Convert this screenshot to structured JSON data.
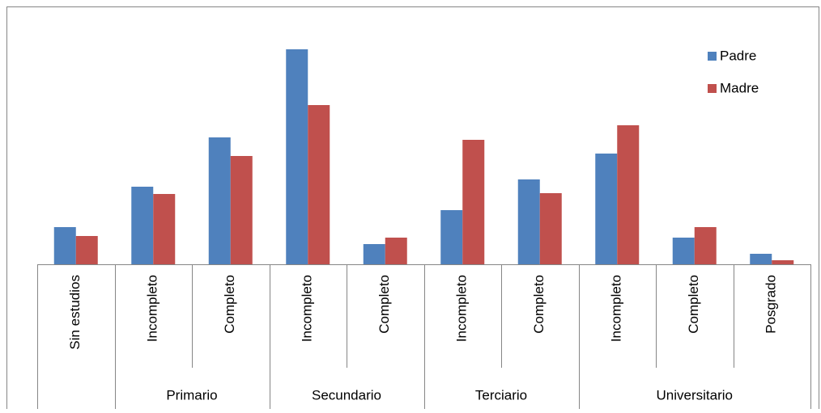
{
  "chart_data": {
    "type": "bar",
    "groups": [
      {
        "categories": [
          "Sin estudios"
        ]
      },
      {
        "name": "Primario",
        "categories": [
          "Incompleto",
          "Completo"
        ]
      },
      {
        "name": "Secundario",
        "categories": [
          "Incompleto",
          "Completo"
        ]
      },
      {
        "name": "Terciario",
        "categories": [
          "Incompleto",
          "Completo"
        ]
      },
      {
        "name": "Universitario",
        "categories": [
          "Incompleto",
          "Completo",
          "Posgrado"
        ]
      }
    ],
    "series": [
      {
        "name": "Padre",
        "color": "#4f81bd",
        "values": [
          46,
          96,
          157,
          266,
          25,
          67,
          105,
          137,
          33,
          13
        ]
      },
      {
        "name": "Madre",
        "color": "#c0504d",
        "values": [
          35,
          87,
          134,
          197,
          33,
          154,
          88,
          172,
          46,
          5
        ]
      }
    ],
    "legend": "right"
  }
}
